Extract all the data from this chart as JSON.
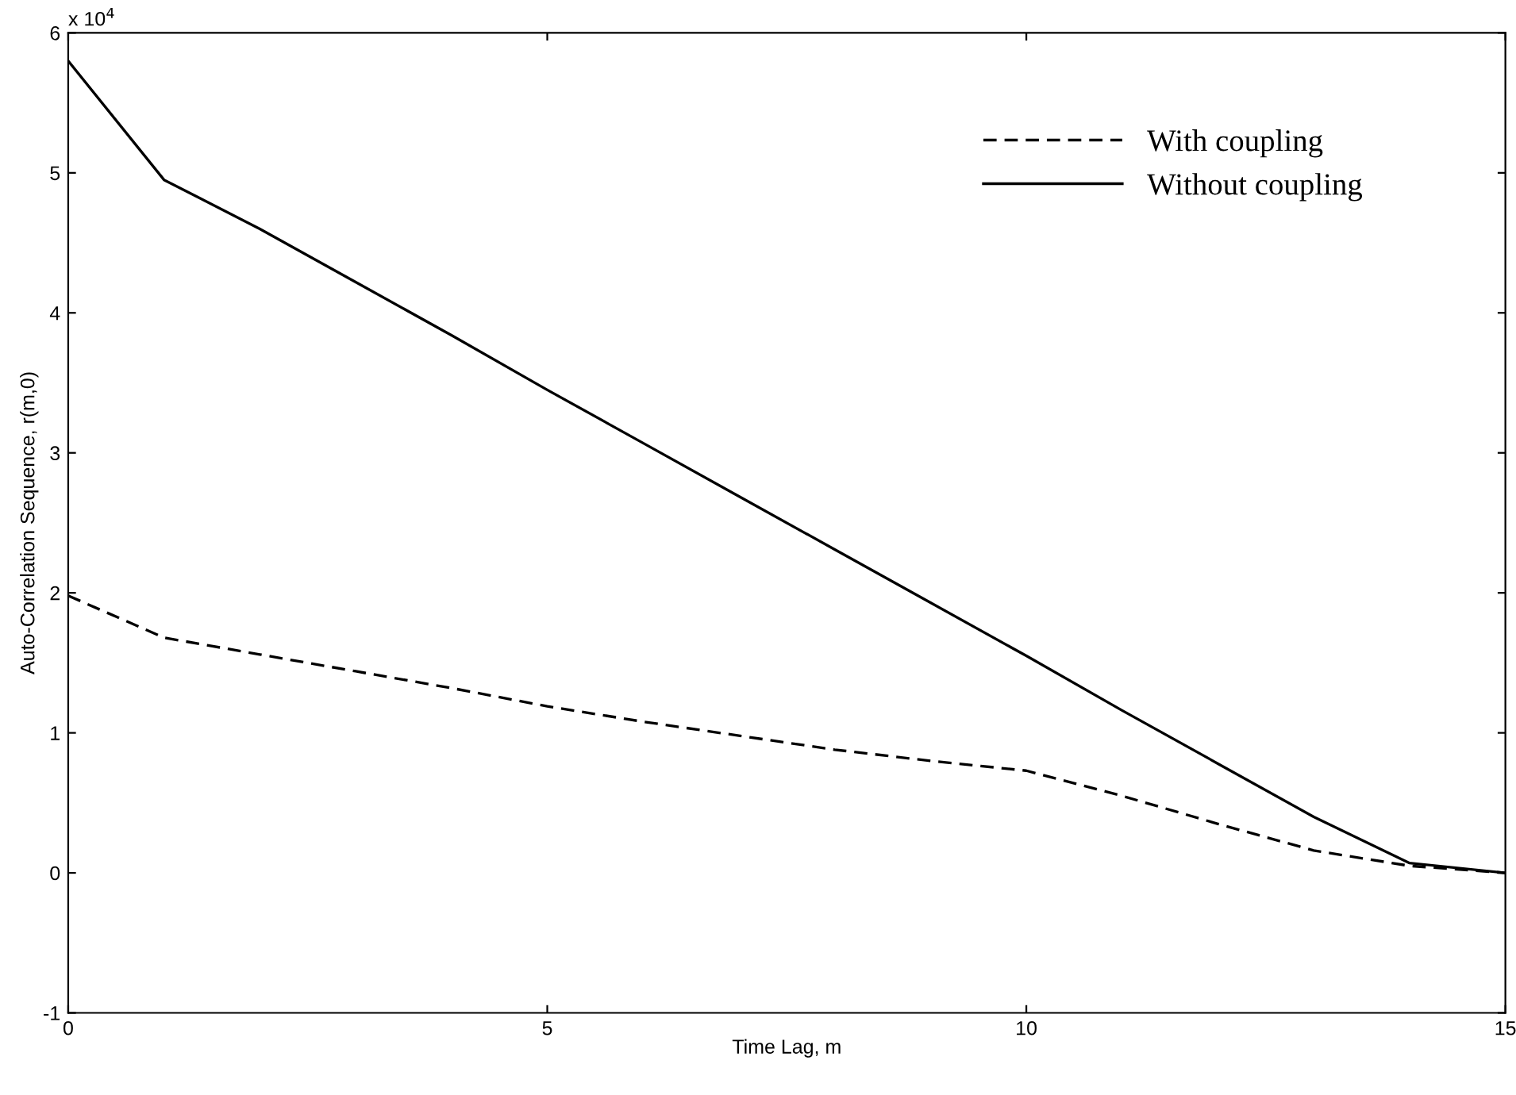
{
  "chart_data": {
    "type": "line",
    "xlabel": "Time Lag, m",
    "ylabel": "Auto-Correlation Sequence, r(m,0)",
    "x": [
      0,
      1,
      2,
      3,
      4,
      5,
      6,
      7,
      8,
      9,
      10,
      11,
      12,
      13,
      14,
      15
    ],
    "series": [
      {
        "name": "With coupling",
        "color": "#000000",
        "line_style": "dashed",
        "values": [
          1.98,
          1.68,
          1.56,
          1.44,
          1.32,
          1.19,
          1.08,
          0.98,
          0.88,
          0.8,
          0.73,
          0.55,
          0.35,
          0.16,
          0.05,
          0
        ]
      },
      {
        "name": "Without coupling",
        "color": "#000000",
        "line_style": "solid",
        "values": [
          5.8,
          4.95,
          4.6,
          4.22,
          3.84,
          3.45,
          3.07,
          2.69,
          2.31,
          1.93,
          1.55,
          1.16,
          0.78,
          0.4,
          0.07,
          0
        ]
      }
    ],
    "xlim": [
      0,
      15
    ],
    "xticks": [
      0,
      5,
      10,
      15
    ],
    "ylim": [
      -1,
      6
    ],
    "yticks": [
      -1,
      0,
      1,
      2,
      3,
      4,
      5,
      6
    ],
    "annotations": [
      "x 10$^{4}$"
    ],
    "grid": false,
    "legend": "top right",
    "marker": "none"
  }
}
